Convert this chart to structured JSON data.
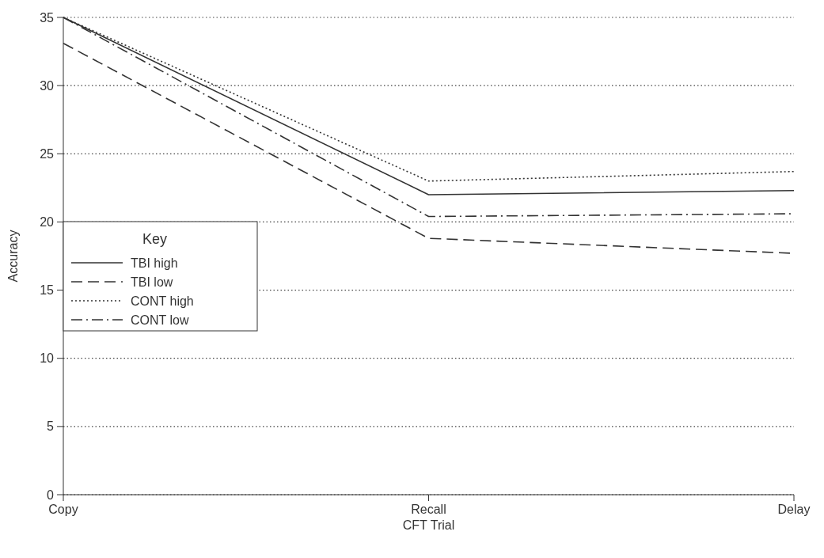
{
  "chart_data": {
    "type": "line",
    "xlabel": "CFT Trial",
    "ylabel": "Accuracy",
    "legend_title": "Key",
    "categories": [
      "Copy",
      "Recall",
      "Delay"
    ],
    "series": [
      {
        "name": "TBI high",
        "color": "#333333",
        "line_style": "solid",
        "values": [
          35,
          22,
          22.3
        ]
      },
      {
        "name": "TBI low",
        "color": "#333333",
        "line_style": "dashed",
        "values": [
          33.1,
          18.8,
          17.7
        ]
      },
      {
        "name": "CONT high",
        "color": "#333333",
        "line_style": "dotted",
        "values": [
          35,
          23,
          23.7
        ]
      },
      {
        "name": "CONT low",
        "color": "#333333",
        "line_style": "dashdot",
        "values": [
          35,
          20.4,
          20.6
        ]
      }
    ],
    "ylim": [
      0,
      35
    ],
    "yticks": [
      0,
      5,
      10,
      15,
      20,
      25,
      30,
      35
    ],
    "grid": "y",
    "legend": "left",
    "marker": "none"
  }
}
